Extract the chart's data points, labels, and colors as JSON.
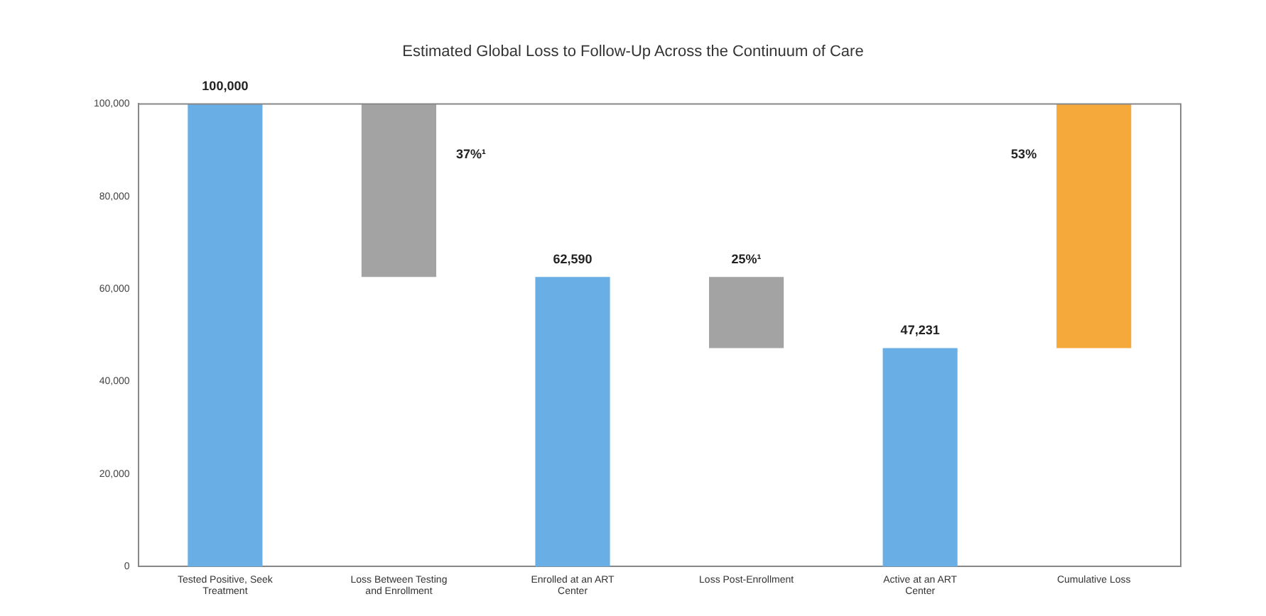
{
  "chart_data": {
    "type": "bar",
    "title": "Estimated Global Loss to Follow-Up Across the Continuum of Care",
    "categories": [
      "Tested Positive, Seek Treatment",
      "Loss Between Testing and Enrollment",
      "Enrolled at an ART Center",
      "Loss Post-Enrollment",
      "Active at an ART Center",
      "Cumulative Loss"
    ],
    "values": [
      100000,
      -37410,
      62590,
      -15359,
      47231,
      52769
    ],
    "base": [
      0,
      100000,
      0,
      62590,
      0,
      47231
    ],
    "colors": [
      "#6aaee6",
      "#a3a3a3",
      "#6aaee6",
      "#a3a3a3",
      "#6aaee6",
      "#f5a93a"
    ],
    "value_labels": [
      "100,000",
      null,
      "62,590",
      null,
      "47,231",
      null
    ],
    "annotations": [
      "37%¹",
      "25%¹",
      "53%"
    ],
    "ylim": [
      0,
      100000
    ],
    "yticks": [
      {
        "value": 0,
        "label": "0"
      },
      {
        "value": 20000,
        "label": "20,000"
      },
      {
        "value": 40000,
        "label": "40,000"
      },
      {
        "value": 60000,
        "label": "60,000"
      },
      {
        "value": 80000,
        "label": "80,000"
      },
      {
        "value": 100000,
        "label": "100,000"
      }
    ],
    "grid": false,
    "legend": false
  }
}
